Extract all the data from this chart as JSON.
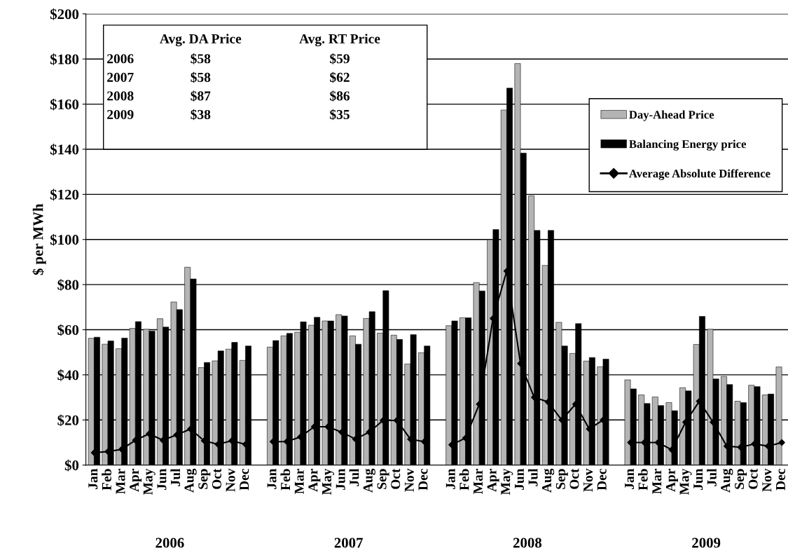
{
  "chart_data": [
    {
      "type": "bar",
      "ylabel": "$ per MWh",
      "categories": [
        "Jan",
        "Feb",
        "Mar",
        "Apr",
        "May",
        "Jun",
        "Jul",
        "Aug",
        "Sep",
        "Oct",
        "Nov",
        "Dec",
        null,
        "Jan",
        "Feb",
        "Mar",
        "Apr",
        "May",
        "Jun",
        "Jul",
        "Aug",
        "Sep",
        "Oct",
        "Nov",
        "Dec",
        null,
        "Jan",
        "Feb",
        "Mar",
        "Apr",
        "May",
        "Jun",
        "Jul",
        "Aug",
        "Sep",
        "Oct",
        "Nov",
        "Dec",
        null,
        "Jan",
        "Feb",
        "Mar",
        "Apr",
        "May",
        "Jun",
        "Jul",
        "Aug",
        "Sep",
        "Oct",
        "Nov",
        "Dec"
      ],
      "series": [
        {
          "name": "Day-Ahead Price",
          "color": "#b4b4b4",
          "values": [
            56.2,
            53.6,
            51.6,
            60.6,
            60.2,
            64.9,
            72.3,
            87.7,
            43.2,
            46.2,
            51.4,
            46.4,
            null,
            52.3,
            57.3,
            58.9,
            62.0,
            63.9,
            66.7,
            57.3,
            65.0,
            58.5,
            57.6,
            44.8,
            49.8,
            null,
            61.8,
            65.3,
            80.9,
            99.9,
            157.4,
            178,
            119.4,
            88.5,
            63.3,
            49.5,
            46.1,
            43.6,
            null,
            37.8,
            31.1,
            30.2,
            27.7,
            34.3,
            53.5,
            60.2,
            39.3,
            28.3,
            35.4,
            31.1,
            43.5
          ]
        },
        {
          "name": "Balancing Energy price",
          "color": "#000000",
          "values": [
            56.7,
            55.0,
            56.3,
            63.6,
            59.4,
            61.2,
            68.9,
            82.5,
            45.5,
            50.6,
            54.4,
            52.8,
            null,
            55.2,
            58.4,
            63.5,
            65.5,
            63.9,
            66.1,
            53.6,
            68.0,
            77.3,
            55.7,
            57.8,
            52.8,
            null,
            63.9,
            65.3,
            77.2,
            104.4,
            167.1,
            138.3,
            104.0,
            104.0,
            52.8,
            62.7,
            47.7,
            47.0,
            null,
            33.8,
            27.3,
            26.4,
            24.1,
            32.9,
            65.9,
            38.2,
            35.7,
            27.7,
            34.8,
            31.5,
            null
          ]
        },
        {
          "name": "Average Absolute Difference",
          "type": "line",
          "color": "#000000",
          "marker": "diamond",
          "values": [
            5.5,
            6,
            7,
            11,
            13.9,
            11,
            13.4,
            16,
            10.8,
            9.2,
            10.8,
            9.2,
            null,
            10.4,
            10.4,
            12.5,
            17,
            17,
            14.6,
            11.5,
            14.6,
            19.8,
            19.8,
            11.5,
            10.4,
            null,
            9,
            12,
            27,
            65,
            86,
            45,
            30,
            28,
            20,
            27,
            16,
            20,
            null,
            10,
            10,
            10,
            6.8,
            19,
            28.3,
            19,
            8.4,
            7.9,
            9.4,
            8.4,
            10
          ]
        }
      ],
      "ylim": [
        0,
        200
      ],
      "yticks": [
        {
          "value": 0,
          "label": "$0"
        },
        {
          "value": 20,
          "label": "$20"
        },
        {
          "value": 40,
          "label": "$40"
        },
        {
          "value": 60,
          "label": "$60"
        },
        {
          "value": 80,
          "label": "$80"
        },
        {
          "value": 100,
          "label": "$100"
        },
        {
          "value": 120,
          "label": "$120"
        },
        {
          "value": 140,
          "label": "$140"
        },
        {
          "value": 160,
          "label": "$160"
        },
        {
          "value": 180,
          "label": "$180"
        },
        {
          "value": 200,
          "label": "$200"
        }
      ],
      "grid": "y",
      "legend": "top right",
      "annotations": [
        "2006",
        "2007",
        "2008",
        "2009",
        "Avg. DA Price",
        "Avg. RT Price",
        "2006",
        "$58",
        "$59",
        "2007",
        "$58",
        "$62",
        "2008",
        "$87",
        "$86",
        "2009",
        "$38",
        "$35"
      ]
    }
  ]
}
